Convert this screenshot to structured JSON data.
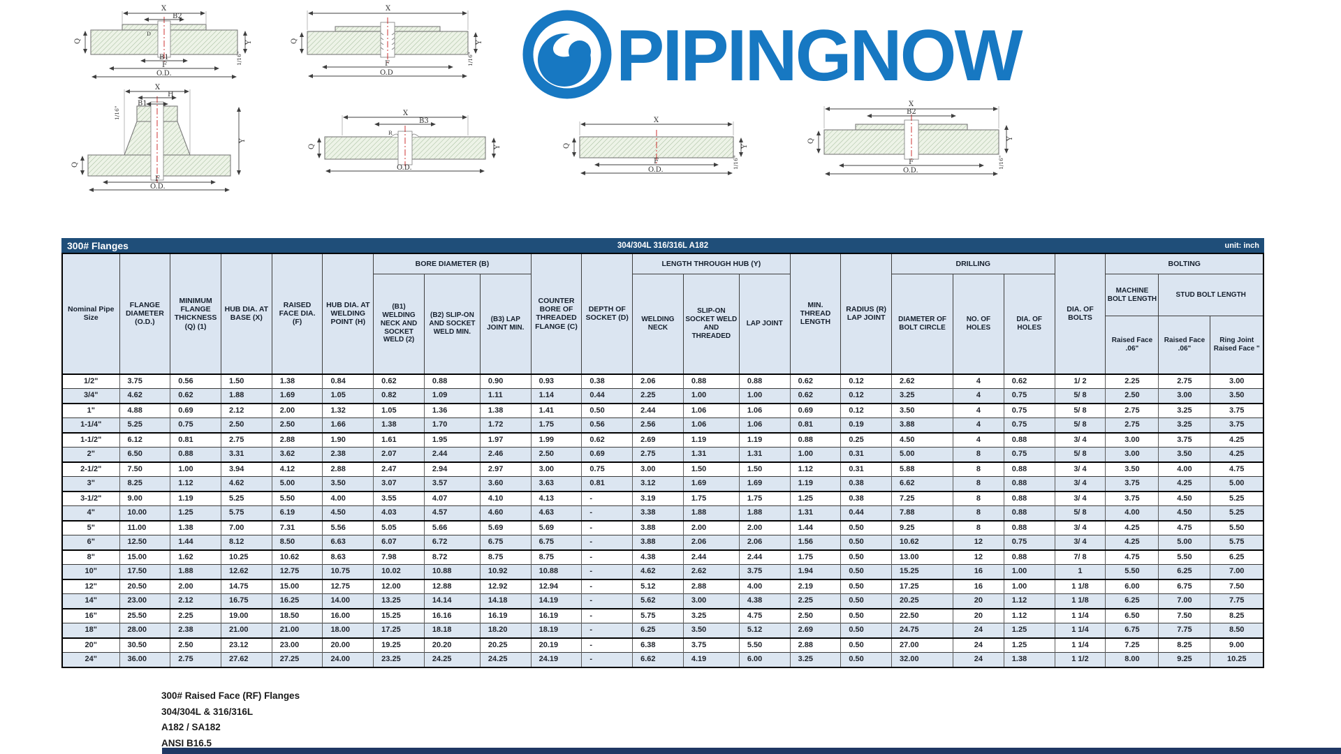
{
  "logo": {
    "text": "PIPINGNOW",
    "color": "#1778c2",
    "icon": "pipingnow-circle-icon"
  },
  "table_title": {
    "left": "300# Flanges",
    "center": "304/304L 316/316L A182",
    "right": "unit: inch"
  },
  "table": {
    "groups": {
      "bore": "BORE DIAMETER (B)",
      "length": "LENGTH THROUGH HUB (Y)",
      "drilling": "DRILLING",
      "bolting": "BOLTING",
      "machine": "MACHINE BOLT LENGTH",
      "stud": "STUD BOLT LENGTH"
    },
    "columns": [
      "Nominal Pipe Size",
      "FLANGE DIAMETER (O.D.)",
      "MINIMUM FLANGE THICKNESS (Q) (1)",
      "HUB DIA. AT BASE (X)",
      "RAISED FACE DIA. (F)",
      "HUB DIA. AT WELDING POINT (H)",
      "(B1) WELDING NECK AND SOCKET WELD (2)",
      "(B2) SLIP-ON AND SOCKET WELD MIN.",
      "(B3) LAP JOINT MIN.",
      "COUNTER BORE OF THREADED FLANGE (C)",
      "DEPTH OF SOCKET (D)",
      "WELDING NECK",
      "SLIP-ON SOCKET WELD AND THREADED",
      "LAP JOINT",
      "MIN. THREAD LENGTH",
      "RADIUS (R) LAP JOINT",
      "DIAMETER OF BOLT CIRCLE",
      "NO. OF HOLES",
      "DIA. OF HOLES",
      "DIA. OF BOLTS",
      "Raised Face .06\"",
      "Raised Face .06\"",
      "Ring Joint Raised Face \""
    ],
    "rows": [
      [
        "1/2\"",
        "3.75",
        "0.56",
        "1.50",
        "1.38",
        "0.84",
        "0.62",
        "0.88",
        "0.90",
        "0.93",
        "0.38",
        "2.06",
        "0.88",
        "0.88",
        "0.62",
        "0.12",
        "2.62",
        "4",
        "0.62",
        "1/ 2",
        "2.25",
        "2.75",
        "3.00"
      ],
      [
        "3/4\"",
        "4.62",
        "0.62",
        "1.88",
        "1.69",
        "1.05",
        "0.82",
        "1.09",
        "1.11",
        "1.14",
        "0.44",
        "2.25",
        "1.00",
        "1.00",
        "0.62",
        "0.12",
        "3.25",
        "4",
        "0.75",
        "5/ 8",
        "2.50",
        "3.00",
        "3.50"
      ],
      [
        "1\"",
        "4.88",
        "0.69",
        "2.12",
        "2.00",
        "1.32",
        "1.05",
        "1.36",
        "1.38",
        "1.41",
        "0.50",
        "2.44",
        "1.06",
        "1.06",
        "0.69",
        "0.12",
        "3.50",
        "4",
        "0.75",
        "5/ 8",
        "2.75",
        "3.25",
        "3.75"
      ],
      [
        "1-1/4\"",
        "5.25",
        "0.75",
        "2.50",
        "2.50",
        "1.66",
        "1.38",
        "1.70",
        "1.72",
        "1.75",
        "0.56",
        "2.56",
        "1.06",
        "1.06",
        "0.81",
        "0.19",
        "3.88",
        "4",
        "0.75",
        "5/ 8",
        "2.75",
        "3.25",
        "3.75"
      ],
      [
        "1-1/2\"",
        "6.12",
        "0.81",
        "2.75",
        "2.88",
        "1.90",
        "1.61",
        "1.95",
        "1.97",
        "1.99",
        "0.62",
        "2.69",
        "1.19",
        "1.19",
        "0.88",
        "0.25",
        "4.50",
        "4",
        "0.88",
        "3/ 4",
        "3.00",
        "3.75",
        "4.25"
      ],
      [
        "2\"",
        "6.50",
        "0.88",
        "3.31",
        "3.62",
        "2.38",
        "2.07",
        "2.44",
        "2.46",
        "2.50",
        "0.69",
        "2.75",
        "1.31",
        "1.31",
        "1.00",
        "0.31",
        "5.00",
        "8",
        "0.75",
        "5/ 8",
        "3.00",
        "3.50",
        "4.25"
      ],
      [
        "2-1/2\"",
        "7.50",
        "1.00",
        "3.94",
        "4.12",
        "2.88",
        "2.47",
        "2.94",
        "2.97",
        "3.00",
        "0.75",
        "3.00",
        "1.50",
        "1.50",
        "1.12",
        "0.31",
        "5.88",
        "8",
        "0.88",
        "3/ 4",
        "3.50",
        "4.00",
        "4.75"
      ],
      [
        "3\"",
        "8.25",
        "1.12",
        "4.62",
        "5.00",
        "3.50",
        "3.07",
        "3.57",
        "3.60",
        "3.63",
        "0.81",
        "3.12",
        "1.69",
        "1.69",
        "1.19",
        "0.38",
        "6.62",
        "8",
        "0.88",
        "3/ 4",
        "3.75",
        "4.25",
        "5.00"
      ],
      [
        "3-1/2\"",
        "9.00",
        "1.19",
        "5.25",
        "5.50",
        "4.00",
        "3.55",
        "4.07",
        "4.10",
        "4.13",
        "-",
        "3.19",
        "1.75",
        "1.75",
        "1.25",
        "0.38",
        "7.25",
        "8",
        "0.88",
        "3/ 4",
        "3.75",
        "4.50",
        "5.25"
      ],
      [
        "4\"",
        "10.00",
        "1.25",
        "5.75",
        "6.19",
        "4.50",
        "4.03",
        "4.57",
        "4.60",
        "4.63",
        "-",
        "3.38",
        "1.88",
        "1.88",
        "1.31",
        "0.44",
        "7.88",
        "8",
        "0.88",
        "5/ 8",
        "4.00",
        "4.50",
        "5.25"
      ],
      [
        "5\"",
        "11.00",
        "1.38",
        "7.00",
        "7.31",
        "5.56",
        "5.05",
        "5.66",
        "5.69",
        "5.69",
        "-",
        "3.88",
        "2.00",
        "2.00",
        "1.44",
        "0.50",
        "9.25",
        "8",
        "0.88",
        "3/ 4",
        "4.25",
        "4.75",
        "5.50"
      ],
      [
        "6\"",
        "12.50",
        "1.44",
        "8.12",
        "8.50",
        "6.63",
        "6.07",
        "6.72",
        "6.75",
        "6.75",
        "-",
        "3.88",
        "2.06",
        "2.06",
        "1.56",
        "0.50",
        "10.62",
        "12",
        "0.75",
        "3/ 4",
        "4.25",
        "5.00",
        "5.75"
      ],
      [
        "8\"",
        "15.00",
        "1.62",
        "10.25",
        "10.62",
        "8.63",
        "7.98",
        "8.72",
        "8.75",
        "8.75",
        "-",
        "4.38",
        "2.44",
        "2.44",
        "1.75",
        "0.50",
        "13.00",
        "12",
        "0.88",
        "7/ 8",
        "4.75",
        "5.50",
        "6.25"
      ],
      [
        "10\"",
        "17.50",
        "1.88",
        "12.62",
        "12.75",
        "10.75",
        "10.02",
        "10.88",
        "10.92",
        "10.88",
        "-",
        "4.62",
        "2.62",
        "3.75",
        "1.94",
        "0.50",
        "15.25",
        "16",
        "1.00",
        "1",
        "5.50",
        "6.25",
        "7.00"
      ],
      [
        "12\"",
        "20.50",
        "2.00",
        "14.75",
        "15.00",
        "12.75",
        "12.00",
        "12.88",
        "12.92",
        "12.94",
        "-",
        "5.12",
        "2.88",
        "4.00",
        "2.19",
        "0.50",
        "17.25",
        "16",
        "1.00",
        "1 1/8",
        "6.00",
        "6.75",
        "7.50"
      ],
      [
        "14\"",
        "23.00",
        "2.12",
        "16.75",
        "16.25",
        "14.00",
        "13.25",
        "14.14",
        "14.18",
        "14.19",
        "-",
        "5.62",
        "3.00",
        "4.38",
        "2.25",
        "0.50",
        "20.25",
        "20",
        "1.12",
        "1 1/8",
        "6.25",
        "7.00",
        "7.75"
      ],
      [
        "16\"",
        "25.50",
        "2.25",
        "19.00",
        "18.50",
        "16.00",
        "15.25",
        "16.16",
        "16.19",
        "16.19",
        "-",
        "5.75",
        "3.25",
        "4.75",
        "2.50",
        "0.50",
        "22.50",
        "20",
        "1.12",
        "1 1/4",
        "6.50",
        "7.50",
        "8.25"
      ],
      [
        "18\"",
        "28.00",
        "2.38",
        "21.00",
        "21.00",
        "18.00",
        "17.25",
        "18.18",
        "18.20",
        "18.19",
        "-",
        "6.25",
        "3.50",
        "5.12",
        "2.69",
        "0.50",
        "24.75",
        "24",
        "1.25",
        "1 1/4",
        "6.75",
        "7.75",
        "8.50"
      ],
      [
        "20\"",
        "30.50",
        "2.50",
        "23.12",
        "23.00",
        "20.00",
        "19.25",
        "20.20",
        "20.25",
        "20.19",
        "-",
        "6.38",
        "3.75",
        "5.50",
        "2.88",
        "0.50",
        "27.00",
        "24",
        "1.25",
        "1 1/4",
        "7.25",
        "8.25",
        "9.00"
      ],
      [
        "24\"",
        "36.00",
        "2.75",
        "27.62",
        "27.25",
        "24.00",
        "23.25",
        "24.25",
        "24.25",
        "24.19",
        "-",
        "6.62",
        "4.19",
        "6.00",
        "3.25",
        "0.50",
        "32.00",
        "24",
        "1.38",
        "1 1/2",
        "8.00",
        "9.25",
        "10.25"
      ]
    ]
  },
  "drawings": {
    "d1": {
      "x": "X",
      "b2": "B2",
      "d": "D",
      "b1": "B1",
      "f": "F",
      "od": "O.D.",
      "y": "Y",
      "s": "1/16\"",
      "q": "Q"
    },
    "d2": {
      "x": "X",
      "f": "F",
      "od": "O.D",
      "y": "Y",
      "s": "1/16\"",
      "q": "Q"
    },
    "d3": {
      "x": "X",
      "h": "H",
      "b1": "B1",
      "s": "1/16\"",
      "y": "Y",
      "q": "Q",
      "f": "F",
      "od": "O.D."
    },
    "d4": {
      "x": "X",
      "b3": "B3",
      "r": "R",
      "q": "Q",
      "y": "Y",
      "od": "O.D."
    },
    "d5": {
      "x": "X",
      "q": "Q",
      "y": "Y",
      "s": "1/16\"",
      "f": "F",
      "od": "O.D."
    },
    "d6": {
      "x": "X",
      "b2": "B2",
      "q": "Q",
      "y": "Y",
      "s": "1/16\"",
      "f": "F",
      "od": "O.D."
    }
  },
  "footer": {
    "lines": [
      "300# Raised Face (RF) Flanges",
      "304/304L & 316/316L",
      "A182 / SA182",
      "ANSI B16.5"
    ]
  }
}
